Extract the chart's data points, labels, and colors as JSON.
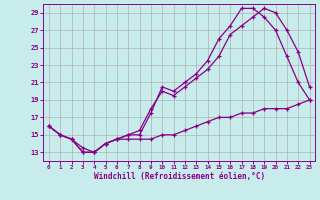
{
  "background_color": "#c8ecec",
  "grid_color": "#b0b0b0",
  "line_color": "#880088",
  "xlabel": "Windchill (Refroidissement éolien,°C)",
  "xlim": [
    -0.5,
    23.5
  ],
  "ylim": [
    12.0,
    30.0
  ],
  "xticks": [
    0,
    1,
    2,
    3,
    4,
    5,
    6,
    7,
    8,
    9,
    10,
    11,
    12,
    13,
    14,
    15,
    16,
    17,
    18,
    19,
    20,
    21,
    22,
    23
  ],
  "yticks": [
    13,
    15,
    17,
    19,
    21,
    23,
    25,
    27,
    29
  ],
  "line1_x": [
    0,
    1,
    2,
    3,
    4,
    5,
    6,
    7,
    8,
    9,
    10,
    11,
    12,
    13,
    14,
    15,
    16,
    17,
    18,
    19,
    20,
    21,
    22,
    23
  ],
  "line1_y": [
    16.0,
    15.0,
    14.5,
    13.0,
    13.0,
    14.0,
    14.5,
    15.0,
    15.5,
    18.0,
    20.0,
    19.5,
    20.5,
    21.5,
    22.5,
    24.0,
    26.5,
    27.5,
    28.5,
    29.5,
    29.0,
    27.0,
    24.5,
    20.5
  ],
  "line2_x": [
    0,
    1,
    2,
    3,
    4,
    5,
    6,
    7,
    8,
    9,
    10,
    11,
    12,
    13,
    14,
    15,
    16,
    17,
    18,
    19,
    20,
    21,
    22,
    23
  ],
  "line2_y": [
    16.0,
    15.0,
    14.5,
    13.5,
    13.0,
    14.0,
    14.5,
    15.0,
    15.0,
    17.5,
    20.5,
    20.0,
    21.0,
    22.0,
    23.5,
    26.0,
    27.5,
    29.5,
    29.5,
    28.5,
    27.0,
    24.0,
    21.0,
    19.0
  ],
  "line3_x": [
    0,
    1,
    2,
    3,
    4,
    5,
    6,
    7,
    8,
    9,
    10,
    11,
    12,
    13,
    14,
    15,
    16,
    17,
    18,
    19,
    20,
    21,
    22,
    23
  ],
  "line3_y": [
    16.0,
    15.0,
    14.5,
    13.0,
    13.0,
    14.0,
    14.5,
    14.5,
    14.5,
    14.5,
    15.0,
    15.0,
    15.5,
    16.0,
    16.5,
    17.0,
    17.0,
    17.5,
    17.5,
    18.0,
    18.0,
    18.0,
    18.5,
    19.0
  ]
}
